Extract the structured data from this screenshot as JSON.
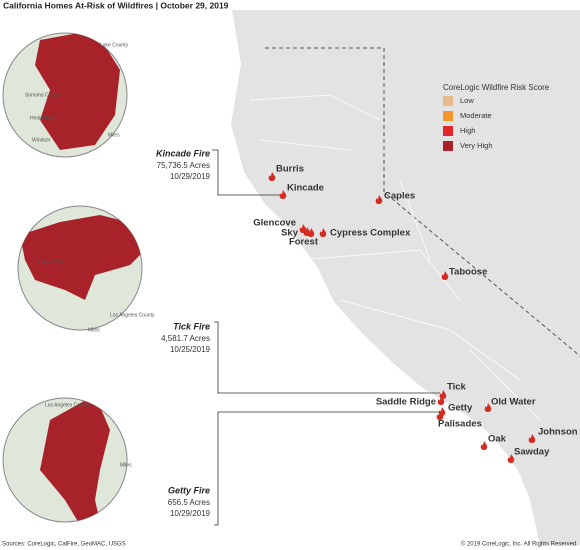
{
  "header": {
    "title": "California Homes At-Risk of Wildfires | October 29, 2019"
  },
  "legend": {
    "title": "CoreLogic Wildfire Risk Score",
    "items": [
      {
        "label": "Low",
        "color": "#e9bb8c"
      },
      {
        "label": "Moderate",
        "color": "#f5962b"
      },
      {
        "label": "High",
        "color": "#e4252b"
      },
      {
        "label": "Very High",
        "color": "#a8222a"
      }
    ]
  },
  "fires": [
    "Burris",
    "Kincade",
    "Caples",
    "Glencove",
    "Sky",
    "Forest",
    "Cypress Complex",
    "Taboose",
    "Tick",
    "Saddle Ridge",
    "Getty",
    "Old Water",
    "Palisades",
    "Johnson",
    "Oak",
    "Sawday"
  ],
  "insets": [
    {
      "name": "Kincade Fire",
      "acres": "75,736.5 Acres",
      "date": "10/29/2019",
      "labels": [
        "Lake County",
        "Sonoma County",
        "Healdsburg",
        "Windsor",
        "Miles"
      ]
    },
    {
      "name": "Tick Fire",
      "acres": "4,581.7 Acres",
      "date": "10/25/2019",
      "labels": [
        "Forest Park",
        "Los Angeles County",
        "Miles"
      ]
    },
    {
      "name": "Getty Fire",
      "acres": "656.5 Acres",
      "date": "10/29/2019",
      "labels": [
        "Los Angeles County",
        "Miles"
      ]
    }
  ],
  "footer": {
    "sources": "Sources: CoreLogic, CalFire, GeoMAC, USGS",
    "copyright": "© 2019 CoreLogic, Inc. All Rights Reserved."
  }
}
